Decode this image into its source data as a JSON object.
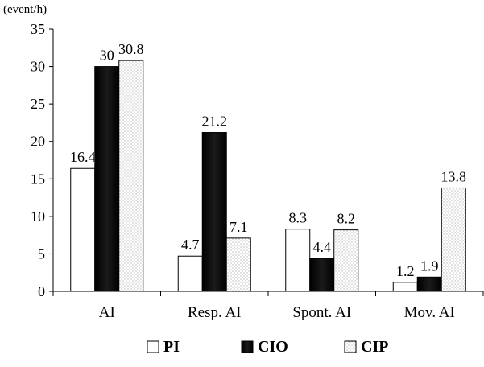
{
  "chart_data": {
    "type": "bar",
    "title": "",
    "xlabel": "",
    "ylabel": "(event/h)",
    "ylim": [
      0,
      35
    ],
    "yticks": [
      0,
      5,
      10,
      15,
      20,
      25,
      30,
      35
    ],
    "grid": false,
    "legend_position": "bottom",
    "categories": [
      "AI",
      "Resp. AI",
      "Spont. AI",
      "Mov. AI"
    ],
    "series": [
      {
        "name": "PI",
        "values": [
          16.4,
          4.7,
          8.3,
          1.2
        ],
        "labels": [
          "16.4",
          "4.7",
          "8.3",
          "1.2"
        ],
        "fill": "white"
      },
      {
        "name": "CIO",
        "values": [
          30,
          21.2,
          4.4,
          1.9
        ],
        "labels": [
          "30",
          "21.2",
          "4.4",
          "1.9"
        ],
        "fill": "black"
      },
      {
        "name": "CIP",
        "values": [
          30.8,
          7.1,
          8.2,
          13.8
        ],
        "labels": [
          "30.8",
          "7.1",
          "8.2",
          "13.8"
        ],
        "fill": "dotted"
      }
    ]
  },
  "colors": {
    "bar_outline": "#000000",
    "black_fill": "#000000",
    "dot_color": "#9a9a9a",
    "axis": "#000000",
    "text": "#000000"
  }
}
